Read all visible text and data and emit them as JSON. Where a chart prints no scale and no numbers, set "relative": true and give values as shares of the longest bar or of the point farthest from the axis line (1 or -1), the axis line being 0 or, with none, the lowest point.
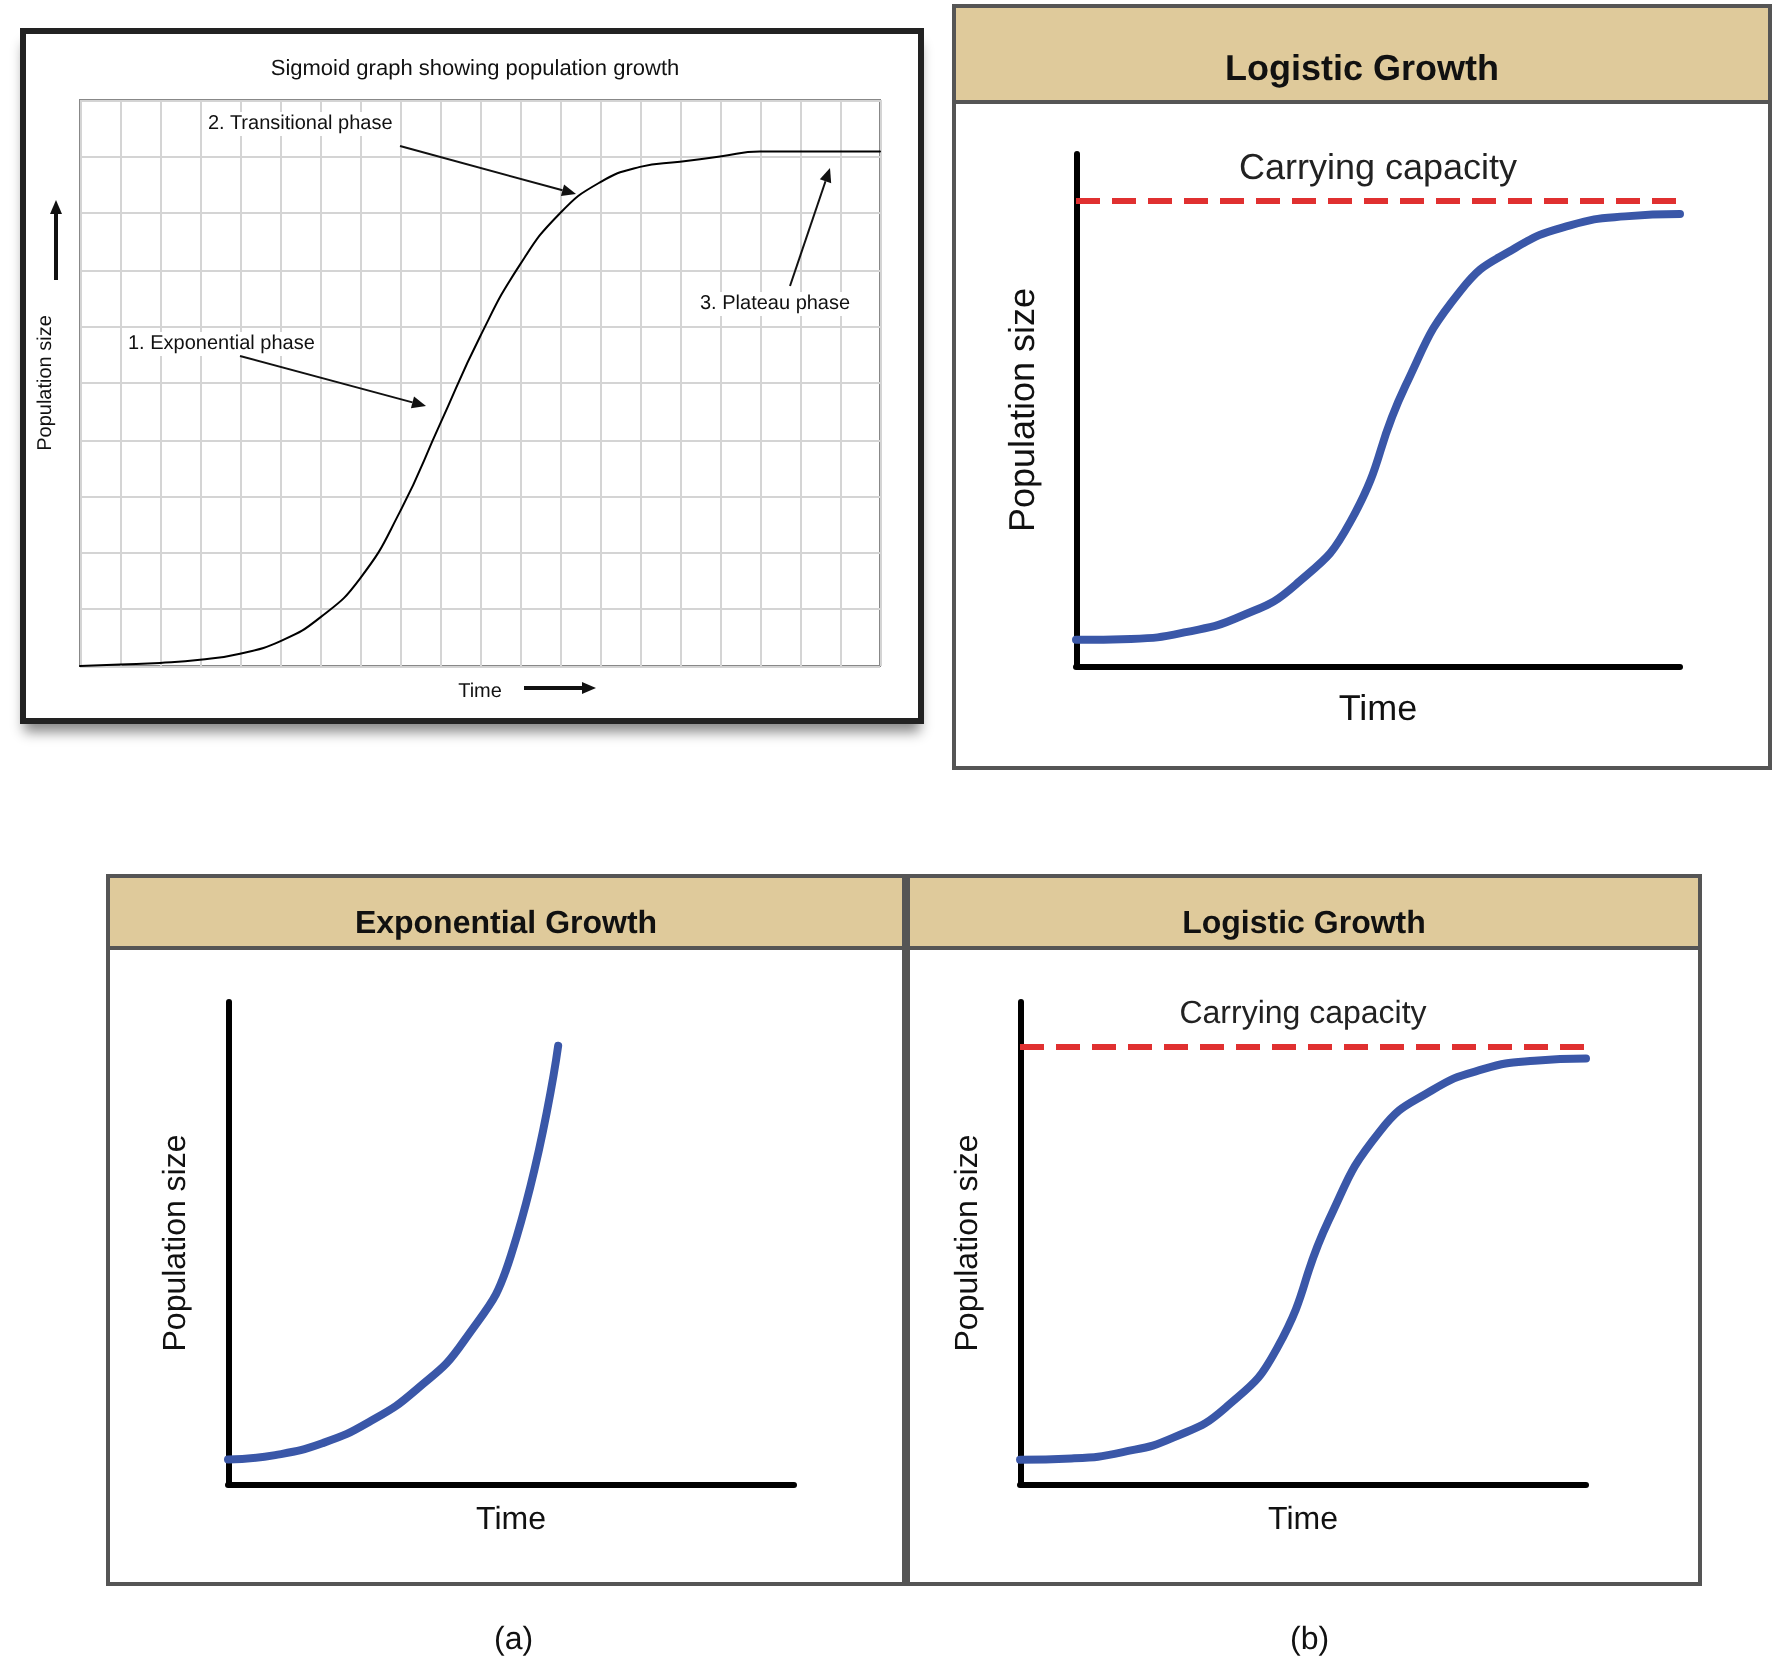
{
  "chart_data": [
    {
      "type": "line",
      "title": "Sigmoid graph showing population growth",
      "xlabel": "Time",
      "ylabel": "Population size",
      "relative": true,
      "grid": true,
      "tick_labels": false,
      "marker": "none",
      "categories": [
        null,
        null,
        null,
        null,
        null,
        null,
        null,
        null,
        null,
        null,
        null,
        null,
        null,
        null,
        null,
        null,
        null,
        null,
        null,
        null,
        null
      ],
      "series": [
        {
          "color": "#000000",
          "values": [
            0.0,
            0.003,
            0.006,
            0.012,
            0.024,
            0.048,
            0.094,
            0.17,
            0.3,
            0.47,
            0.64,
            0.78,
            0.88,
            0.94,
            0.97,
            0.98,
            0.99,
            1.0,
            1.0,
            1.0,
            1.0
          ]
        }
      ],
      "annotations": [
        "1. Exponential phase",
        "2. Transitional phase",
        "3. Plateau phase"
      ]
    },
    {
      "type": "line",
      "title": "Logistic Growth",
      "xlabel": "Time",
      "ylabel": "Population size",
      "relative": true,
      "tick_labels": false,
      "marker": "none",
      "categories": [
        null,
        null,
        null,
        null,
        null,
        null,
        null,
        null,
        null,
        null,
        null,
        null
      ],
      "series": [
        {
          "color": "#3a57a8",
          "values": [
            0.058,
            0.06,
            0.075,
            0.11,
            0.18,
            0.32,
            0.62,
            0.83,
            0.925,
            0.975,
            0.995,
            1.0
          ]
        }
      ],
      "ref_lines": [
        {
          "axis": "y",
          "value": 1.03,
          "label": "Carrying capacity",
          "color": "#e03030",
          "line_style": "dashed"
        }
      ]
    },
    {
      "type": "line",
      "title": "Exponential Growth",
      "xlabel": "Time",
      "ylabel": "Population size",
      "relative": true,
      "tick_labels": false,
      "marker": "none",
      "categories": [
        null,
        null,
        null,
        null,
        null,
        null,
        null,
        null,
        null,
        null,
        null,
        null,
        null
      ],
      "series": [
        {
          "color": "#3a57a8",
          "values": [
            0.056,
            0.066,
            0.093,
            0.142,
            0.216,
            0.326,
            0.522,
            1.0,
            null,
            null,
            null,
            null,
            null
          ]
        }
      ],
      "annotations": [
        "(a)"
      ]
    },
    {
      "type": "line",
      "title": "Logistic Growth",
      "xlabel": "Time",
      "ylabel": "Population size",
      "relative": true,
      "tick_labels": false,
      "marker": "none",
      "categories": [
        null,
        null,
        null,
        null,
        null,
        null,
        null,
        null,
        null,
        null,
        null,
        null
      ],
      "series": [
        {
          "color": "#3a57a8",
          "values": [
            0.057,
            0.06,
            0.075,
            0.11,
            0.18,
            0.32,
            0.62,
            0.83,
            0.925,
            0.975,
            0.995,
            1.0
          ]
        }
      ],
      "ref_lines": [
        {
          "axis": "y",
          "value": 1.03,
          "label": "Carrying capacity",
          "color": "#e03030",
          "line_style": "dashed"
        }
      ],
      "annotations": [
        "(b)"
      ]
    }
  ]
}
